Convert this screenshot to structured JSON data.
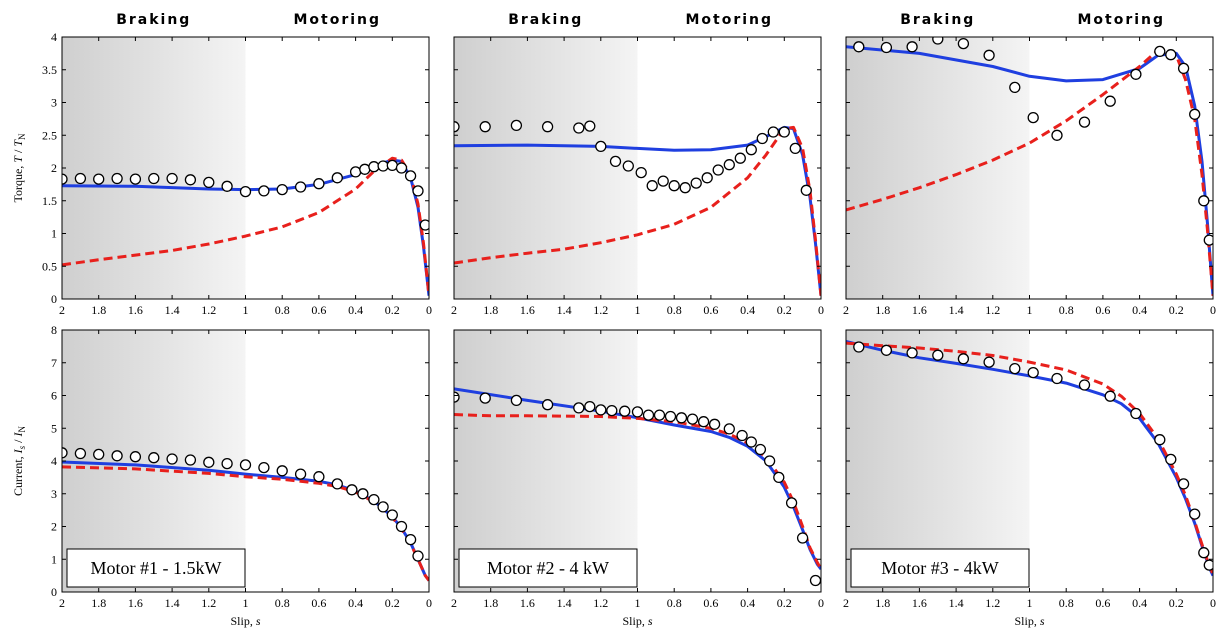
{
  "figure": {
    "region_labels": {
      "braking": "Braking",
      "motoring": "Motoring"
    },
    "colors": {
      "model_a": "#1f3fe0",
      "model_b": "#e8201c",
      "measured_edge": "#000000",
      "braking_shade_dark": "#cfcfcf",
      "braking_shade_light": "#f4f4f4"
    }
  },
  "chart_data": [
    {
      "type": "line",
      "row": 0,
      "col": 0,
      "ylabel": "Torque, T / T_N",
      "ylabel_parts": [
        "Torque, ",
        "T",
        " / ",
        "T",
        "N"
      ],
      "xlim": [
        2,
        0
      ],
      "ylim": [
        0,
        4
      ],
      "xticks": [
        2,
        1.8,
        1.6,
        1.4,
        1.2,
        1,
        0.8,
        0.6,
        0.4,
        0.2,
        0
      ],
      "yticks": [
        0,
        0.5,
        1,
        1.5,
        2,
        2.5,
        3,
        3.5,
        4
      ],
      "braking_region": [
        1,
        2
      ],
      "series": [
        {
          "style": "solid",
          "x": [
            2,
            1.6,
            1.2,
            1.0,
            0.8,
            0.6,
            0.4,
            0.3,
            0.2,
            0.15,
            0.1,
            0.06,
            0.03,
            0.0
          ],
          "y": [
            1.73,
            1.72,
            1.68,
            1.67,
            1.68,
            1.75,
            1.9,
            2.03,
            2.12,
            2.1,
            1.85,
            1.4,
            0.8,
            0.05
          ]
        },
        {
          "style": "dashed",
          "x": [
            2,
            1.8,
            1.6,
            1.4,
            1.2,
            1.0,
            0.8,
            0.6,
            0.4,
            0.3,
            0.2,
            0.15,
            0.1,
            0.06,
            0.03,
            0.0
          ],
          "y": [
            0.52,
            0.6,
            0.67,
            0.74,
            0.84,
            0.96,
            1.1,
            1.32,
            1.68,
            1.95,
            2.15,
            2.12,
            1.9,
            1.45,
            0.85,
            0.05
          ]
        },
        {
          "style": "markers",
          "x": [
            2,
            1.9,
            1.8,
            1.7,
            1.6,
            1.5,
            1.4,
            1.3,
            1.2,
            1.1,
            1.0,
            0.9,
            0.8,
            0.7,
            0.6,
            0.5,
            0.4,
            0.35,
            0.3,
            0.25,
            0.2,
            0.15,
            0.1,
            0.06,
            0.02
          ],
          "y": [
            1.83,
            1.84,
            1.83,
            1.84,
            1.83,
            1.84,
            1.84,
            1.82,
            1.78,
            1.72,
            1.64,
            1.65,
            1.67,
            1.71,
            1.76,
            1.85,
            1.94,
            1.98,
            2.02,
            2.03,
            2.04,
            2.0,
            1.88,
            1.65,
            1.13
          ]
        }
      ]
    },
    {
      "type": "line",
      "row": 0,
      "col": 1,
      "xlim": [
        2,
        0
      ],
      "ylim": [
        0,
        4
      ],
      "xticks": [
        2,
        1.8,
        1.6,
        1.4,
        1.2,
        1,
        0.8,
        0.6,
        0.4,
        0.2,
        0
      ],
      "yticks": [
        0,
        0.5,
        1,
        1.5,
        2,
        2.5,
        3,
        3.5,
        4
      ],
      "braking_region": [
        1,
        2
      ],
      "series": [
        {
          "style": "solid",
          "x": [
            2,
            1.6,
            1.2,
            1.0,
            0.8,
            0.6,
            0.4,
            0.3,
            0.2,
            0.15,
            0.1,
            0.06,
            0.03,
            0.0
          ],
          "y": [
            2.34,
            2.35,
            2.33,
            2.3,
            2.27,
            2.28,
            2.35,
            2.48,
            2.62,
            2.6,
            2.2,
            1.55,
            0.85,
            0.05
          ]
        },
        {
          "style": "dashed",
          "x": [
            2,
            1.8,
            1.6,
            1.4,
            1.2,
            1.0,
            0.8,
            0.6,
            0.4,
            0.3,
            0.2,
            0.15,
            0.1,
            0.06,
            0.03,
            0.0
          ],
          "y": [
            0.55,
            0.63,
            0.7,
            0.76,
            0.86,
            0.98,
            1.14,
            1.4,
            1.85,
            2.2,
            2.6,
            2.62,
            2.3,
            1.65,
            0.9,
            0.05
          ]
        },
        {
          "style": "markers",
          "x": [
            2,
            1.83,
            1.66,
            1.49,
            1.32,
            1.26,
            1.2,
            1.12,
            1.05,
            0.98,
            0.92,
            0.86,
            0.8,
            0.74,
            0.68,
            0.62,
            0.56,
            0.5,
            0.44,
            0.38,
            0.32,
            0.26,
            0.2,
            0.14,
            0.08
          ],
          "y": [
            2.63,
            2.63,
            2.65,
            2.63,
            2.61,
            2.64,
            2.33,
            2.1,
            2.03,
            1.93,
            1.73,
            1.8,
            1.73,
            1.7,
            1.77,
            1.85,
            1.97,
            2.05,
            2.15,
            2.28,
            2.45,
            2.55,
            2.55,
            2.3,
            1.66
          ]
        }
      ]
    },
    {
      "type": "line",
      "row": 0,
      "col": 2,
      "xlim": [
        2,
        0
      ],
      "ylim": [
        0,
        4
      ],
      "xticks": [
        2,
        1.8,
        1.6,
        1.4,
        1.2,
        1,
        0.8,
        0.6,
        0.4,
        0.2,
        0
      ],
      "yticks": [
        0,
        0.5,
        1,
        1.5,
        2,
        2.5,
        3,
        3.5,
        4
      ],
      "braking_region": [
        1,
        2
      ],
      "series": [
        {
          "style": "solid",
          "x": [
            2,
            1.6,
            1.2,
            1.0,
            0.8,
            0.6,
            0.4,
            0.3,
            0.2,
            0.15,
            0.1,
            0.06,
            0.03,
            0.0
          ],
          "y": [
            3.85,
            3.75,
            3.55,
            3.4,
            3.33,
            3.35,
            3.52,
            3.72,
            3.75,
            3.55,
            2.95,
            2.1,
            1.15,
            0.05
          ]
        },
        {
          "style": "dashed",
          "x": [
            2,
            1.8,
            1.6,
            1.4,
            1.2,
            1.0,
            0.8,
            0.6,
            0.4,
            0.3,
            0.2,
            0.15,
            0.1,
            0.06,
            0.03,
            0.0
          ],
          "y": [
            1.36,
            1.52,
            1.7,
            1.9,
            2.12,
            2.38,
            2.72,
            3.12,
            3.55,
            3.8,
            3.72,
            3.35,
            2.75,
            1.9,
            1.05,
            0.05
          ]
        },
        {
          "style": "markers",
          "x": [
            1.93,
            1.78,
            1.64,
            1.5,
            1.36,
            1.22,
            1.08,
            0.98,
            0.85,
            0.7,
            0.56,
            0.42,
            0.29,
            0.23,
            0.16,
            0.1,
            0.05,
            0.02
          ],
          "y": [
            3.85,
            3.84,
            3.85,
            3.97,
            3.9,
            3.72,
            3.23,
            2.77,
            2.5,
            2.7,
            3.02,
            3.43,
            3.78,
            3.73,
            3.52,
            2.82,
            1.5,
            0.9
          ]
        }
      ]
    },
    {
      "type": "line",
      "row": 1,
      "col": 0,
      "ylabel": "Current, I_s / I_N",
      "ylabel_parts": [
        "Current, ",
        "I",
        "s",
        " / ",
        "I",
        "N"
      ],
      "xlabel": "Slip, s",
      "xlabel_parts": [
        "Slip, ",
        "s"
      ],
      "box_label": "Motor #1 - 1.5kW",
      "xlim": [
        2,
        0
      ],
      "ylim": [
        0,
        8
      ],
      "xticks": [
        2,
        1.8,
        1.6,
        1.4,
        1.2,
        1,
        0.8,
        0.6,
        0.4,
        0.2,
        0
      ],
      "yticks": [
        0,
        1,
        2,
        3,
        4,
        5,
        6,
        7,
        8
      ],
      "braking_region": [
        1,
        2
      ],
      "series": [
        {
          "style": "solid",
          "x": [
            2,
            1.6,
            1.2,
            1.0,
            0.8,
            0.6,
            0.5,
            0.4,
            0.3,
            0.2,
            0.15,
            0.1,
            0.06,
            0.02,
            0.0
          ],
          "y": [
            3.97,
            3.88,
            3.72,
            3.6,
            3.5,
            3.38,
            3.27,
            3.08,
            2.78,
            2.3,
            1.95,
            1.5,
            1.0,
            0.5,
            0.35
          ]
        },
        {
          "style": "dashed",
          "x": [
            2,
            1.6,
            1.2,
            1.0,
            0.8,
            0.6,
            0.5,
            0.4,
            0.3,
            0.2,
            0.15,
            0.1,
            0.06,
            0.02,
            0.0
          ],
          "y": [
            3.82,
            3.76,
            3.62,
            3.52,
            3.44,
            3.32,
            3.22,
            3.05,
            2.75,
            2.28,
            1.93,
            1.48,
            1.0,
            0.5,
            0.35
          ]
        },
        {
          "style": "markers",
          "x": [
            2,
            1.9,
            1.8,
            1.7,
            1.6,
            1.5,
            1.4,
            1.3,
            1.2,
            1.1,
            1.0,
            0.9,
            0.8,
            0.7,
            0.6,
            0.5,
            0.42,
            0.36,
            0.3,
            0.25,
            0.2,
            0.15,
            0.1,
            0.06
          ],
          "y": [
            4.25,
            4.23,
            4.2,
            4.16,
            4.13,
            4.1,
            4.06,
            4.03,
            3.96,
            3.92,
            3.88,
            3.8,
            3.7,
            3.6,
            3.52,
            3.3,
            3.12,
            3.0,
            2.82,
            2.6,
            2.35,
            2.0,
            1.6,
            1.1
          ]
        }
      ]
    },
    {
      "type": "line",
      "row": 1,
      "col": 1,
      "xlabel": "Slip, s",
      "xlabel_parts": [
        "Slip, ",
        "s"
      ],
      "box_label": "Motor #2 - 4 kW",
      "xlim": [
        2,
        0
      ],
      "ylim": [
        0,
        8
      ],
      "xticks": [
        2,
        1.8,
        1.6,
        1.4,
        1.2,
        1,
        0.8,
        0.6,
        0.4,
        0.2,
        0
      ],
      "yticks": [
        0,
        1,
        2,
        3,
        4,
        5,
        6,
        7,
        8
      ],
      "braking_region": [
        1,
        2
      ],
      "series": [
        {
          "style": "solid",
          "x": [
            2,
            1.6,
            1.2,
            1.0,
            0.8,
            0.6,
            0.5,
            0.4,
            0.3,
            0.2,
            0.15,
            0.1,
            0.06,
            0.02,
            0.0
          ],
          "y": [
            6.2,
            5.85,
            5.52,
            5.32,
            5.1,
            4.9,
            4.72,
            4.45,
            4.0,
            3.2,
            2.6,
            1.9,
            1.3,
            0.85,
            0.7
          ]
        },
        {
          "style": "dashed",
          "x": [
            2,
            1.8,
            1.6,
            1.2,
            1.0,
            0.8,
            0.6,
            0.5,
            0.4,
            0.3,
            0.2,
            0.15,
            0.1,
            0.06,
            0.02,
            0.0
          ],
          "y": [
            5.42,
            5.38,
            5.38,
            5.36,
            5.3,
            5.2,
            5.0,
            4.82,
            4.55,
            4.12,
            3.35,
            2.75,
            2.0,
            1.35,
            0.9,
            0.7
          ]
        },
        {
          "style": "markers",
          "x": [
            2,
            1.83,
            1.66,
            1.49,
            1.32,
            1.26,
            1.2,
            1.14,
            1.07,
            1.0,
            0.94,
            0.88,
            0.82,
            0.76,
            0.7,
            0.64,
            0.58,
            0.5,
            0.43,
            0.38,
            0.33,
            0.28,
            0.23,
            0.16,
            0.1,
            0.03
          ],
          "y": [
            5.95,
            5.92,
            5.85,
            5.72,
            5.62,
            5.66,
            5.56,
            5.54,
            5.52,
            5.5,
            5.4,
            5.4,
            5.36,
            5.32,
            5.28,
            5.2,
            5.12,
            4.98,
            4.78,
            4.58,
            4.35,
            4.0,
            3.5,
            2.72,
            1.65,
            0.35
          ]
        }
      ]
    },
    {
      "type": "line",
      "row": 1,
      "col": 2,
      "xlabel": "Slip, s",
      "xlabel_parts": [
        "Slip, ",
        "s"
      ],
      "box_label": "Motor #3 - 4kW",
      "xlim": [
        2,
        0
      ],
      "ylim": [
        0,
        8
      ],
      "xticks": [
        2,
        1.8,
        1.6,
        1.4,
        1.2,
        1,
        0.8,
        0.6,
        0.4,
        0.2,
        0
      ],
      "yticks": [
        0,
        1,
        2,
        3,
        4,
        5,
        6,
        7,
        8
      ],
      "braking_region": [
        1,
        2
      ],
      "series": [
        {
          "style": "solid",
          "x": [
            2,
            1.8,
            1.6,
            1.4,
            1.2,
            1.0,
            0.8,
            0.6,
            0.5,
            0.4,
            0.3,
            0.2,
            0.15,
            0.1,
            0.06,
            0.02,
            0.0
          ],
          "y": [
            7.65,
            7.38,
            7.15,
            6.98,
            6.8,
            6.6,
            6.38,
            6.02,
            5.75,
            5.3,
            4.55,
            3.5,
            2.85,
            2.1,
            1.4,
            0.75,
            0.5
          ]
        },
        {
          "style": "dashed",
          "x": [
            2,
            1.8,
            1.6,
            1.4,
            1.2,
            1.0,
            0.8,
            0.6,
            0.5,
            0.4,
            0.3,
            0.2,
            0.15,
            0.1,
            0.06,
            0.02,
            0.0
          ],
          "y": [
            7.6,
            7.52,
            7.45,
            7.35,
            7.22,
            7.02,
            6.78,
            6.35,
            5.98,
            5.45,
            4.68,
            3.6,
            2.95,
            2.15,
            1.45,
            0.8,
            0.55
          ]
        },
        {
          "style": "markers",
          "x": [
            1.93,
            1.78,
            1.64,
            1.5,
            1.36,
            1.22,
            1.08,
            0.98,
            0.85,
            0.7,
            0.56,
            0.42,
            0.29,
            0.23,
            0.16,
            0.1,
            0.05,
            0.02
          ],
          "y": [
            7.48,
            7.38,
            7.3,
            7.23,
            7.12,
            7.02,
            6.82,
            6.7,
            6.52,
            6.32,
            5.98,
            5.45,
            4.65,
            4.05,
            3.3,
            2.38,
            1.2,
            0.82
          ]
        }
      ]
    }
  ]
}
